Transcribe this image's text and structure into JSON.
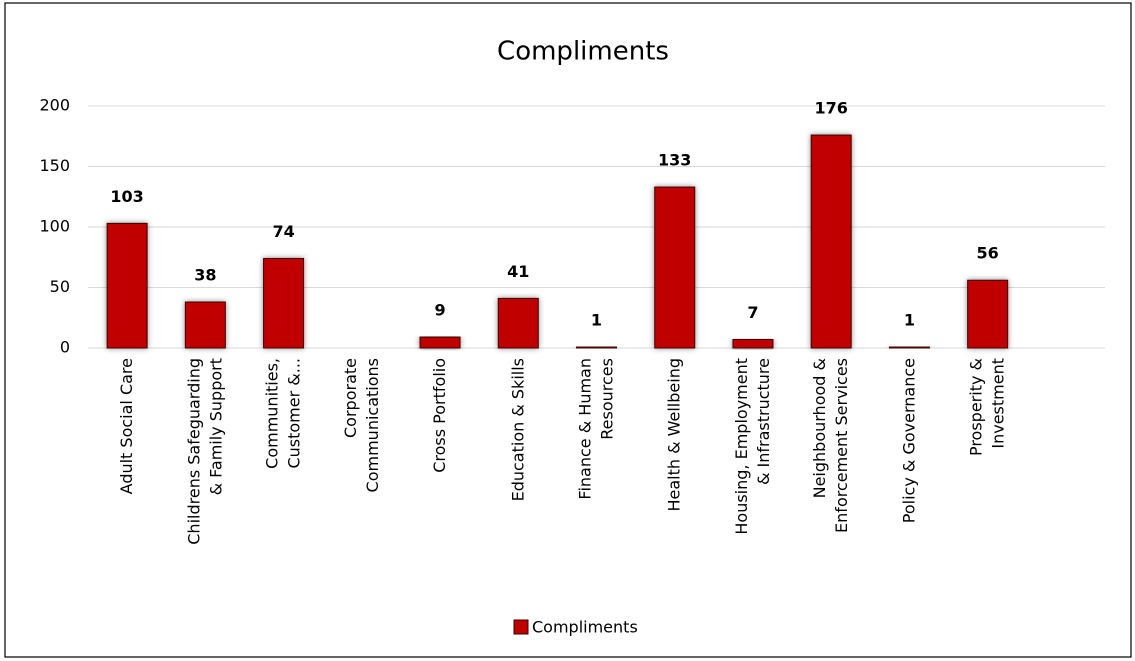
{
  "chart_data": {
    "type": "bar",
    "title": "Compliments",
    "categories": [
      "Adult Social Care",
      "Childrens Safeguarding\n& Family Support",
      "Communities,\nCustomer &...",
      "Corporate\nCommunications",
      "Cross Portfolio",
      "Education & Skills",
      "Finance & Human\nResources",
      "Health & Wellbeing",
      "Housing, Employment\n& Infrastructure",
      "Neighbourhood &\nEnforcement Services",
      "Policy & Governance",
      "Prosperity &\nInvestment",
      null
    ],
    "series": [
      {
        "name": "Compliments",
        "color": "#c00000",
        "values": [
          103,
          38,
          74,
          null,
          9,
          41,
          1,
          133,
          7,
          176,
          1,
          56,
          null
        ]
      }
    ],
    "ylim": [
      0,
      200
    ],
    "yticks": [
      0,
      50,
      100,
      150,
      200
    ],
    "grid": true,
    "legend": "bottom"
  }
}
